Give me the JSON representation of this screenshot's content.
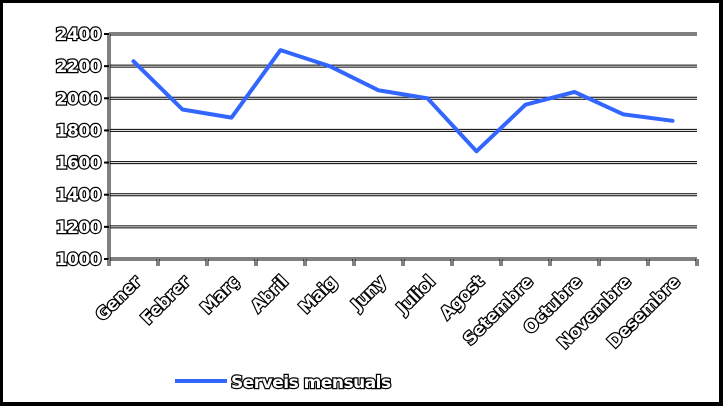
{
  "chart_data": {
    "type": "line",
    "title": "",
    "xlabel": "",
    "ylabel": "",
    "categories": [
      "Gener",
      "Febrer",
      "Març",
      "Abril",
      "Maig",
      "Juny",
      "Juliol",
      "Agost",
      "Setembre",
      "Octubre",
      "Novembre",
      "Desembre"
    ],
    "series": [
      {
        "name": "Serveis mensuals",
        "color": "#3366ff",
        "values": [
          2230,
          1930,
          1880,
          2300,
          2200,
          2050,
          2000,
          1670,
          1960,
          2040,
          1900,
          1860
        ]
      }
    ],
    "ylim": [
      1000,
      2400
    ],
    "yticks": [
      "1000",
      "1200",
      "1400",
      "1600",
      "1800",
      "2000",
      "2200",
      "2400"
    ],
    "grid": true,
    "legend_position": "bottom"
  }
}
